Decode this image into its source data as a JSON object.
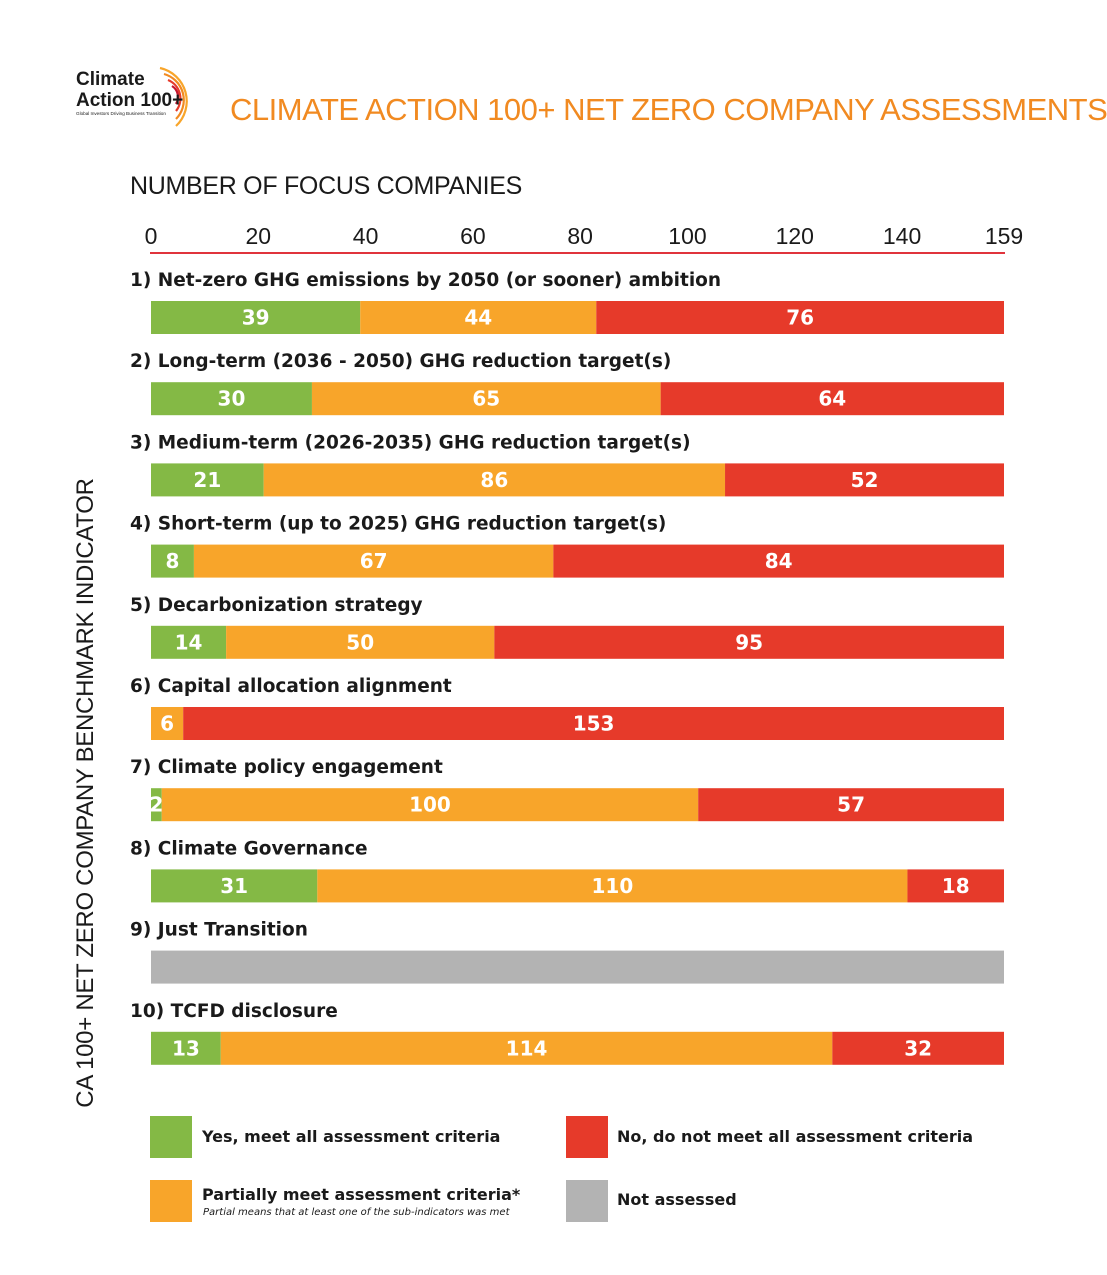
{
  "logo": {
    "line1": "Climate",
    "line2": "Action 100+",
    "tagline": "Global Investors Driving Business Transition"
  },
  "title": "CLIMATE ACTION 100+ NET ZERO COMPANY ASSESSMENTS",
  "colors": {
    "yes": "#84b945",
    "partial": "#f8a52a",
    "no": "#e63a2a",
    "not_assessed": "#b3b3b3",
    "accent": "#f18a21",
    "axis": "#e0343c"
  },
  "chart_data": {
    "type": "bar",
    "orientation": "horizontal-stacked",
    "title": "CLIMATE ACTION 100+ NET ZERO COMPANY ASSESSMENTS",
    "xlabel": "NUMBER OF FOCUS COMPANIES",
    "ylabel": "CA 100+ NET ZERO COMPANY BENCHMARK INDICATOR",
    "xlim": [
      0,
      159
    ],
    "xticks": [
      "0",
      "20",
      "40",
      "60",
      "80",
      "100",
      "120",
      "140",
      "159"
    ],
    "xtick_values": [
      0,
      20,
      40,
      60,
      80,
      100,
      120,
      140,
      159
    ],
    "categories": [
      "1)  Net-zero GHG emissions by 2050 (or sooner) ambition",
      "2) Long-term (2036 - 2050) GHG reduction target(s)",
      "3) Medium-term (2026-2035) GHG reduction target(s)",
      "4) Short-term (up to 2025) GHG reduction target(s)",
      "5) Decarbonization strategy",
      "6) Capital allocation alignment",
      "7) Climate policy engagement",
      "8) Climate Governance",
      "9) Just Transition",
      "10) TCFD disclosure"
    ],
    "series": [
      {
        "name": "Yes, meet all assessment criteria",
        "key": "yes",
        "values": [
          39,
          30,
          21,
          8,
          14,
          0,
          2,
          31,
          0,
          13
        ]
      },
      {
        "name": "Partially meet assessment criteria*",
        "key": "partial",
        "values": [
          44,
          65,
          86,
          67,
          50,
          6,
          100,
          110,
          0,
          114
        ]
      },
      {
        "name": "No, do not meet all assessment criteria",
        "key": "no",
        "values": [
          76,
          64,
          52,
          84,
          95,
          153,
          57,
          18,
          0,
          32
        ]
      },
      {
        "name": "Not assessed",
        "key": "not_assessed",
        "values": [
          0,
          0,
          0,
          0,
          0,
          0,
          0,
          0,
          159,
          0
        ]
      }
    ],
    "hidden_label_series": [
      "not_assessed"
    ],
    "legend_position": "bottom"
  },
  "legend": {
    "yes": "Yes, meet all assessment criteria",
    "no": "No, do not meet all assessment criteria",
    "partial": "Partially meet assessment criteria*",
    "partial_note": "Partial means that at least one of the sub-indicators was met",
    "not_assessed": "Not assessed"
  }
}
